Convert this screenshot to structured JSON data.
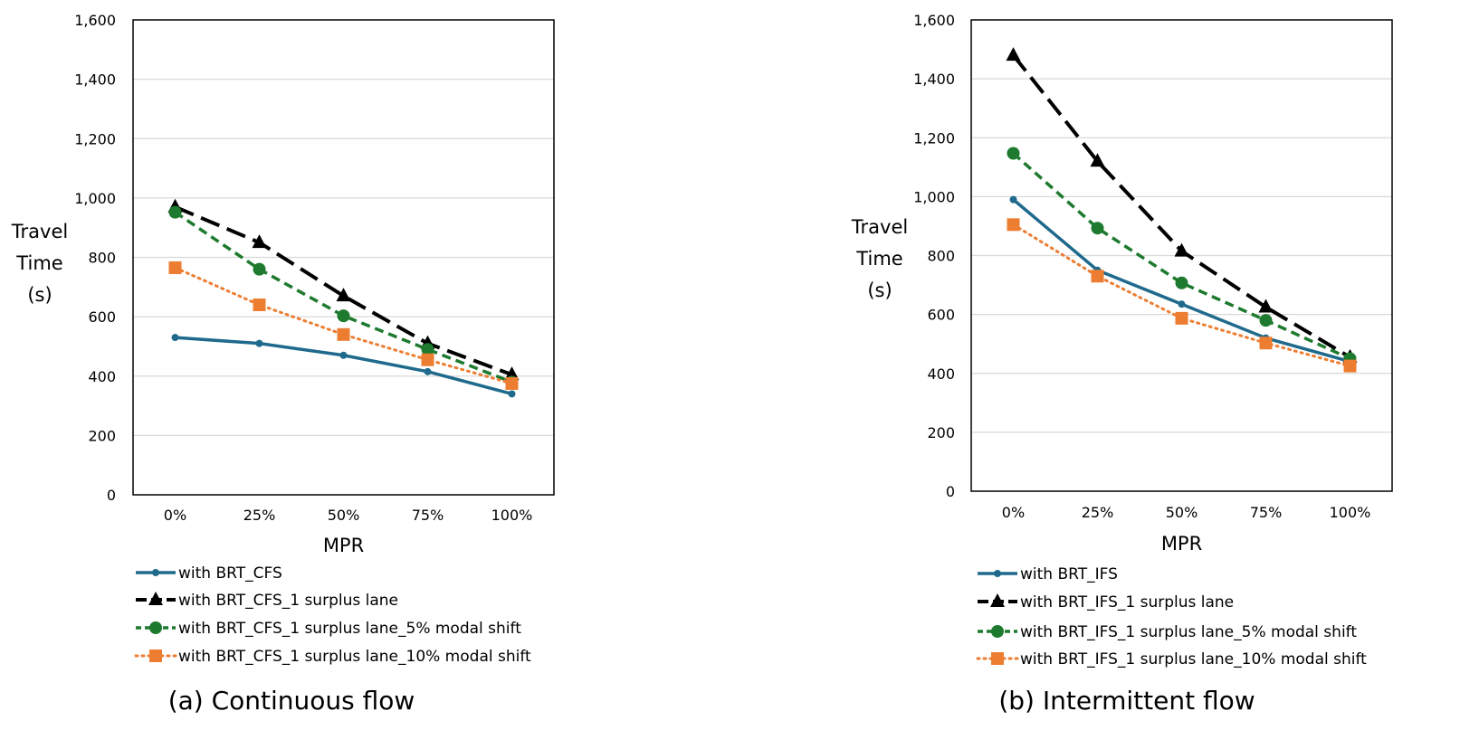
{
  "chart_data": [
    {
      "type": "line",
      "panel_caption": "(a) Continuous flow",
      "xlabel": "MPR",
      "ylabel": [
        "Travel",
        "Time",
        "(s)"
      ],
      "categories": [
        "0%",
        "25%",
        "50%",
        "75%",
        "100%"
      ],
      "ylim": [
        0,
        1600
      ],
      "yticks": [
        0,
        200,
        400,
        600,
        800,
        1000,
        1200,
        1400,
        1600
      ],
      "ytick_labels": [
        "0",
        "200",
        "400",
        "600",
        "800",
        "1,000",
        "1,200",
        "1,400",
        "1,600"
      ],
      "grid": true,
      "legend_position": "bottom-left",
      "series": [
        {
          "name": "with BRT_CFS",
          "values": [
            530,
            510,
            470,
            415,
            340
          ],
          "color": "#1f6a8c",
          "marker": "circle-small",
          "dash": "solid"
        },
        {
          "name": "with BRT_CFS_1 surplus lane",
          "values": [
            970,
            850,
            670,
            510,
            405
          ],
          "color": "#000000",
          "marker": "triangle",
          "dash": "long-dash"
        },
        {
          "name": "with BRT_CFS_1 surplus lane_5% modal shift",
          "values": [
            952,
            760,
            603,
            490,
            380
          ],
          "color": "#1e7a2e",
          "marker": "circle",
          "dash": "dash"
        },
        {
          "name": "with BRT_CFS_1 surplus lane_10% modal shift",
          "values": [
            765,
            640,
            540,
            455,
            375
          ],
          "color": "#ed7d31",
          "marker": "square",
          "dash": "dot"
        }
      ]
    },
    {
      "type": "line",
      "panel_caption": "(b) Intermittent flow",
      "xlabel": "MPR",
      "ylabel": [
        "Travel",
        "Time",
        "(s)"
      ],
      "categories": [
        "0%",
        "25%",
        "50%",
        "75%",
        "100%"
      ],
      "ylim": [
        0,
        1600
      ],
      "yticks": [
        0,
        200,
        400,
        600,
        800,
        1000,
        1200,
        1400,
        1600
      ],
      "ytick_labels": [
        "0",
        "200",
        "400",
        "600",
        "800",
        "1,000",
        "1,200",
        "1,400",
        "1,600"
      ],
      "grid": true,
      "legend_position": "bottom-left",
      "series": [
        {
          "name": "with BRT_IFS",
          "values": [
            990,
            750,
            635,
            520,
            440
          ],
          "color": "#1f6a8c",
          "marker": "circle-small",
          "dash": "solid"
        },
        {
          "name": "with BRT_IFS_1 surplus lane",
          "values": [
            1480,
            1120,
            815,
            625,
            455
          ],
          "color": "#000000",
          "marker": "triangle",
          "dash": "long-dash"
        },
        {
          "name": "with BRT_IFS_1 surplus lane_5% modal shift",
          "values": [
            1147,
            893,
            707,
            580,
            450
          ],
          "color": "#1e7a2e",
          "marker": "circle",
          "dash": "dash"
        },
        {
          "name": "with BRT_IFS_1 surplus lane_10% modal shift",
          "values": [
            905,
            730,
            587,
            503,
            425
          ],
          "color": "#ed7d31",
          "marker": "square",
          "dash": "dot"
        }
      ]
    }
  ]
}
